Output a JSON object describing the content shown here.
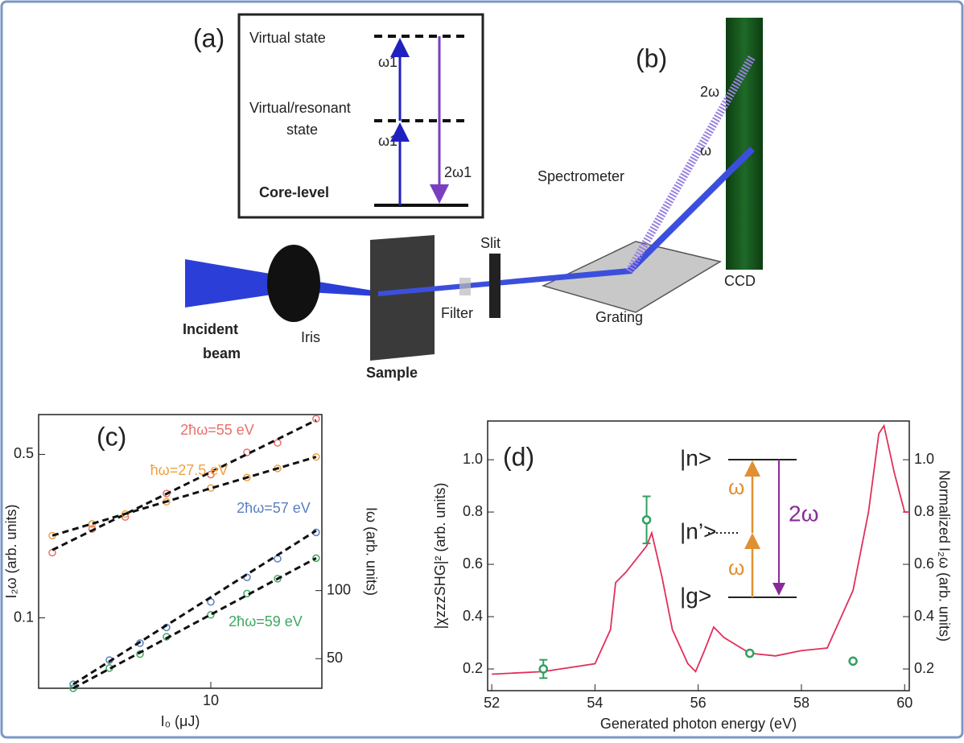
{
  "diagram": {
    "panel_a": {
      "label": "(a)",
      "virtual_state": "Virtual state",
      "omega_upper": "ω1",
      "resonant_line1": "Virtual/resonant",
      "resonant_line2": "state",
      "omega_lower": "ω1",
      "two_omega": "2ω1",
      "core_level": "Core-level"
    },
    "panel_b": {
      "label": "(b)",
      "two_omega": "2ω",
      "omega": "ω",
      "spectrometer": "Spectrometer",
      "slit": "Slit",
      "ccd": "CCD",
      "filter": "Filter",
      "grating": "Grating",
      "incident_line1": "Incident",
      "incident_line2": "beam",
      "iris": "Iris",
      "sample": "Sample"
    }
  },
  "chart_data": [
    {
      "type": "scatter",
      "label": "(c)",
      "x_label": "I₀ (μJ)",
      "y_label": "I₂ω (arb. units)",
      "y2_label": "Iω (arb. units)",
      "xscale": "log",
      "yscale": "log",
      "y2scale": "log",
      "xlim": [
        4.2,
        17.5
      ],
      "ylim": [
        0.05,
        0.74
      ],
      "y2lim": [
        37,
        600
      ],
      "xticks": [
        10
      ],
      "yticks": [
        0.1,
        0.5
      ],
      "y2ticks": [
        50,
        100
      ],
      "series": [
        {
          "name": "2ħω=55 eV",
          "color": "#e8706c",
          "x": [
            4.5,
            5.5,
            6.5,
            8,
            10,
            12,
            14,
            17
          ],
          "values": [
            0.19,
            0.24,
            0.27,
            0.34,
            0.41,
            0.51,
            0.56,
            0.71
          ],
          "fit": [
            0.195,
            0.7
          ]
        },
        {
          "name": "ħω=27.5 eV",
          "color": "#f0a040",
          "axis": "y2",
          "x": [
            4.5,
            5.5,
            6.5,
            8,
            10,
            12,
            14,
            17
          ],
          "values": [
            175,
            197,
            218,
            247,
            284,
            316,
            347,
            390
          ],
          "fit": [
            175,
            390
          ]
        },
        {
          "name": "2ħω=57 eV",
          "color": "#5a7fc0",
          "x": [
            5,
            6,
            7,
            8,
            10,
            12,
            14,
            17
          ],
          "values": [
            0.052,
            0.066,
            0.078,
            0.091,
            0.117,
            0.149,
            0.179,
            0.232
          ],
          "fit": [
            0.052,
            0.236
          ]
        },
        {
          "name": "2ħω=59 eV",
          "color": "#40a860",
          "x": [
            5,
            6,
            7,
            8,
            10,
            12,
            14,
            17
          ],
          "values": [
            0.05,
            0.061,
            0.07,
            0.083,
            0.103,
            0.127,
            0.147,
            0.18
          ],
          "fit": [
            0.05,
            0.18
          ]
        }
      ]
    },
    {
      "type": "line",
      "label": "(d)",
      "x_label": "Generated photon energy (eV)",
      "y_label": "|χzzzSHG|² (arb. units)",
      "y2_label": "Normalized I₂ω (arb. units)",
      "xlim": [
        51.92,
        60.09
      ],
      "ylim": [
        0.117,
        1.148
      ],
      "y2lim": [
        0.117,
        1.148
      ],
      "xticks": [
        52,
        54,
        56,
        58,
        60
      ],
      "yticks": [
        0.2,
        0.4,
        0.6,
        0.8,
        {
          "value": 1.0,
          "label": "1.0"
        }
      ],
      "y2ticks": [
        0.2,
        0.4,
        0.6,
        0.8,
        {
          "value": 1.0,
          "label": "1.0"
        }
      ],
      "series": [
        {
          "type": "line",
          "color": "#e0305a",
          "axis": "y2",
          "x": [
            52,
            53,
            54,
            54.3,
            54.4,
            54.6,
            54.8,
            55.0,
            55.1,
            55.3,
            55.5,
            55.8,
            55.95,
            56.1,
            56.3,
            56.5,
            57,
            57.5,
            58,
            58.5,
            59,
            59.3,
            59.5,
            59.6,
            59.8,
            60,
            60.09
          ],
          "values": [
            0.18,
            0.19,
            0.22,
            0.35,
            0.53,
            0.57,
            0.62,
            0.67,
            0.72,
            0.55,
            0.35,
            0.22,
            0.19,
            0.26,
            0.36,
            0.32,
            0.26,
            0.25,
            0.27,
            0.28,
            0.5,
            0.8,
            1.1,
            1.13,
            0.95,
            0.8,
            0.8
          ]
        },
        {
          "type": "scatter",
          "color": "#30a060",
          "x": [
            53,
            55,
            57,
            59
          ],
          "values": [
            0.2,
            0.77,
            0.26,
            0.23
          ],
          "errors": [
            0.035,
            0.09,
            null,
            null
          ]
        }
      ],
      "inset": {
        "levels": [
          "|n>",
          "|n’>",
          "|g>"
        ],
        "omega": [
          "ω",
          "ω"
        ],
        "two_omega": "2ω"
      }
    }
  ]
}
